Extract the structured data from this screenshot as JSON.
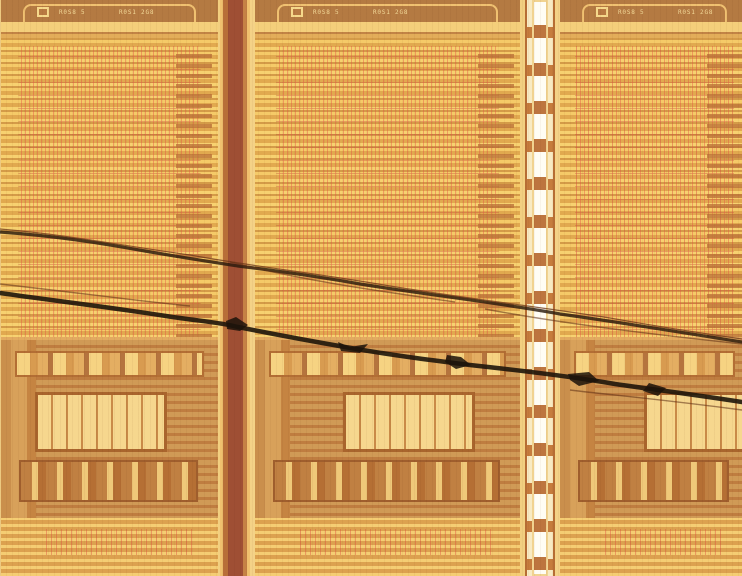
{
  "image": {
    "type": "microchip micrograph",
    "palette": {
      "gold": "#e3ad59",
      "light_gold": "#f7d170",
      "copper": "#b9763a",
      "dark_crack": "#25190c",
      "scribe_white": "#fffdf4"
    }
  },
  "die_labels": [
    {
      "left": "R0S8 5",
      "right": "R0S1 2G8"
    },
    {
      "left": "R0S8 5",
      "right": "R0S1 2G8"
    },
    {
      "left": "R0S8 5",
      "right": "R0S1 2G8"
    }
  ],
  "visual_features": {
    "cracks": "two dark diagonal fracture lines crossing all dies",
    "scribe_columns": "two vertical scribe/test columns separating dies"
  }
}
